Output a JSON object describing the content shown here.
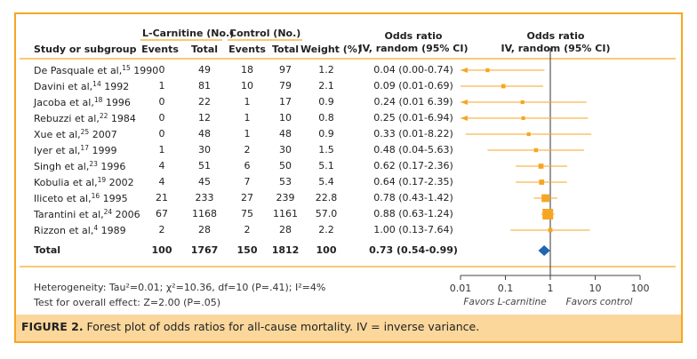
{
  "headers": {
    "study": "Study or subgroup",
    "group1": "L-Carnitine (No.)",
    "group2": "Control (No.)",
    "events": "Events",
    "total": "Total",
    "weight": "Weight (%)",
    "or_title": "Odds ratio",
    "or_sub": "IV, random (95% CI)",
    "plot_title": "Odds ratio",
    "plot_sub": "IV, random (95% CI)"
  },
  "rows": [
    {
      "name": "De Pasquale et al,",
      "ref": "15",
      "year": "1990",
      "e1": "0",
      "t1": "49",
      "e2": "18",
      "t2": "97",
      "w": "1.2",
      "or_text": "0.04 (0.00-0.74)",
      "or": 0.04,
      "lo": 0.004,
      "hi": 0.74,
      "lo_arrow": true
    },
    {
      "name": "Davini et al,",
      "ref": "14",
      "year": "1992",
      "e1": "1",
      "t1": "81",
      "e2": "10",
      "t2": "79",
      "w": "2.1",
      "or_text": "0.09 (0.01-0.69)",
      "or": 0.09,
      "lo": 0.01,
      "hi": 0.69,
      "lo_arrow": false
    },
    {
      "name": "Jacoba et al,",
      "ref": "18",
      "year": "1996",
      "e1": "0",
      "t1": "22",
      "e2": "1",
      "t2": "17",
      "w": "0.9",
      "or_text": "0.24 (0.01 6.39)",
      "or": 0.24,
      "lo": 0.01,
      "hi": 6.39,
      "lo_arrow": true
    },
    {
      "name": "Rebuzzi et al,",
      "ref": "22",
      "year": "1984",
      "e1": "0",
      "t1": "12",
      "e2": "1",
      "t2": "10",
      "w": "0.8",
      "or_text": "0.25 (0.01-6.94)",
      "or": 0.25,
      "lo": 0.01,
      "hi": 6.94,
      "lo_arrow": true
    },
    {
      "name": "Xue et al,",
      "ref": "25",
      "year": "2007",
      "e1": "0",
      "t1": "48",
      "e2": "1",
      "t2": "48",
      "w": "0.9",
      "or_text": "0.33 (0.01-8.22)",
      "or": 0.33,
      "lo": 0.013,
      "hi": 8.22,
      "lo_arrow": false
    },
    {
      "name": "Iyer et al,",
      "ref": "17",
      "year": "1999",
      "e1": "1",
      "t1": "30",
      "e2": "2",
      "t2": "30",
      "w": "1.5",
      "or_text": "0.48 (0.04-5.63)",
      "or": 0.48,
      "lo": 0.04,
      "hi": 5.63,
      "lo_arrow": false
    },
    {
      "name": "Singh et al,",
      "ref": "23",
      "year": "1996",
      "e1": "4",
      "t1": "51",
      "e2": "6",
      "t2": "50",
      "w": "5.1",
      "or_text": "0.62 (0.17-2.36)",
      "or": 0.62,
      "lo": 0.17,
      "hi": 2.36,
      "lo_arrow": false
    },
    {
      "name": "Kobulia et al,",
      "ref": "19",
      "year": "2002",
      "e1": "4",
      "t1": "45",
      "e2": "7",
      "t2": "53",
      "w": "5.4",
      "or_text": "0.64 (0.17-2.35)",
      "or": 0.64,
      "lo": 0.17,
      "hi": 2.35,
      "lo_arrow": false
    },
    {
      "name": "Iliceto et al,",
      "ref": "16",
      "year": "1995",
      "e1": "21",
      "t1": "233",
      "e2": "27",
      "t2": "239",
      "w": "22.8",
      "or_text": "0.78 (0.43-1.42)",
      "or": 0.78,
      "lo": 0.43,
      "hi": 1.42,
      "lo_arrow": false
    },
    {
      "name": "Tarantini et al,",
      "ref": "24",
      "year": "2006",
      "e1": "67",
      "t1": "1168",
      "e2": "75",
      "t2": "1161",
      "w": "57.0",
      "or_text": "0.88 (0.63-1.24)",
      "or": 0.88,
      "lo": 0.63,
      "hi": 1.24,
      "lo_arrow": false
    },
    {
      "name": "Rizzon et al,",
      "ref": "4",
      "year": "1989",
      "e1": "2",
      "t1": "28",
      "e2": "2",
      "t2": "28",
      "w": "2.2",
      "or_text": "1.00 (0.13-7.64)",
      "or": 1.0,
      "lo": 0.13,
      "hi": 7.64,
      "lo_arrow": false
    }
  ],
  "total": {
    "name": "Total",
    "e1": "100",
    "t1": "1767",
    "e2": "150",
    "t2": "1812",
    "w": "100",
    "or_text": "0.73 (0.54-0.99)",
    "or": 0.73,
    "lo": 0.54,
    "hi": 0.99
  },
  "heterogeneity": "Heterogeneity: Tau²=0.01; χ²=10.36, df=10 (P=.41); I²=4%",
  "overall": "Test for overall effect: Z=2.00 (P=.05)",
  "axis": {
    "ticks": [
      0.01,
      0.1,
      1,
      10,
      100
    ],
    "tick_labels": [
      "0.01",
      "0.1",
      "1",
      "10",
      "100"
    ]
  },
  "favors_left": "Favors L-carnitine",
  "favors_right": "Favors control",
  "caption_label": "FIGURE 2.",
  "caption_text": " Forest plot of odds ratios for all-cause mortality. IV = inverse variance.",
  "colors": {
    "accent": "#f6a623",
    "caption_bg": "#fbd79b",
    "diamond": "#1f66b3"
  },
  "chart_data": {
    "type": "scatter",
    "scale": "log",
    "xlim": [
      0.01,
      100
    ],
    "categories": [
      "De Pasquale et al, 1990",
      "Davini et al, 1992",
      "Jacoba et al, 1996",
      "Rebuzzi et al, 1984",
      "Xue et al, 2007",
      "Iyer et al, 1999",
      "Singh et al, 1996",
      "Kobulia et al, 2002",
      "Iliceto et al, 1995",
      "Tarantini et al, 2006",
      "Rizzon et al, 1989",
      "Total"
    ],
    "odds_ratio": [
      0.04,
      0.09,
      0.24,
      0.25,
      0.33,
      0.48,
      0.62,
      0.64,
      0.78,
      0.88,
      1.0,
      0.73
    ],
    "ci_low": [
      0.0,
      0.01,
      0.01,
      0.01,
      0.01,
      0.04,
      0.17,
      0.17,
      0.43,
      0.63,
      0.13,
      0.54
    ],
    "ci_high": [
      0.74,
      0.69,
      6.39,
      6.94,
      8.22,
      5.63,
      2.36,
      2.35,
      1.42,
      1.24,
      7.64,
      0.99
    ],
    "weight": [
      1.2,
      2.1,
      0.9,
      0.8,
      0.9,
      1.5,
      5.1,
      5.4,
      22.8,
      57.0,
      2.2,
      100
    ]
  }
}
